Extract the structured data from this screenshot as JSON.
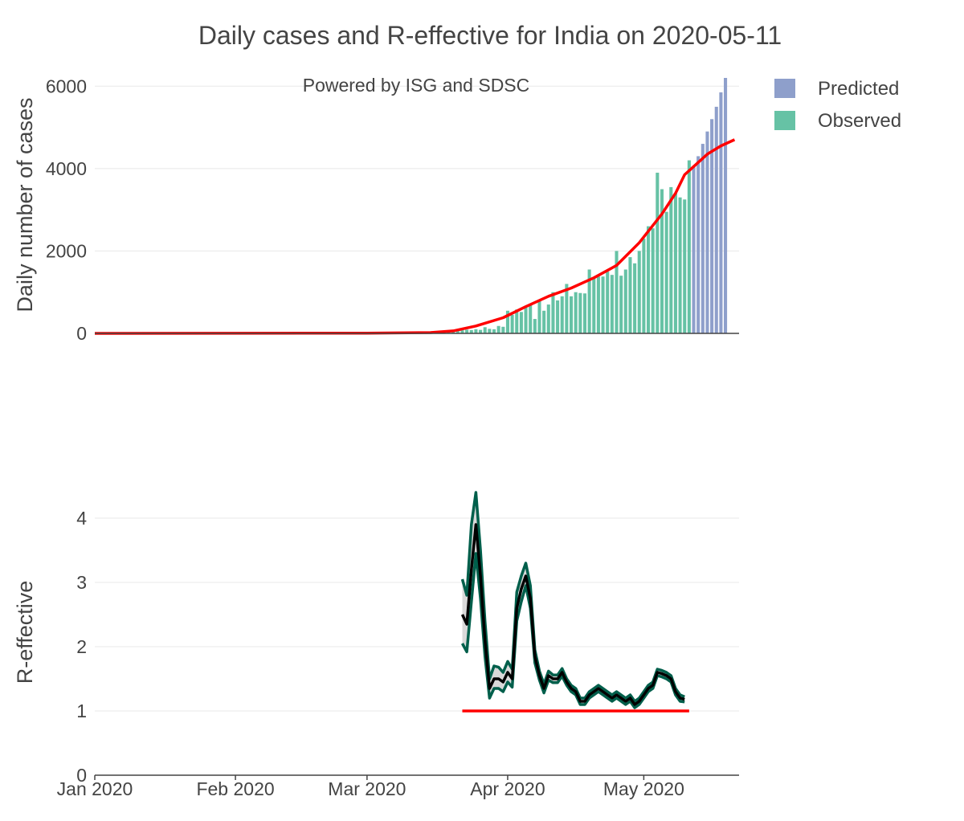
{
  "chart_data": [
    {
      "type": "bar",
      "title": "Daily cases and R-effective for India on 2020-05-11",
      "annotation": "Powered by ISG and SDSC",
      "ylabel": "Daily number of cases",
      "ylim": [
        0,
        6200
      ],
      "yticks": [
        0,
        2000,
        4000,
        6000
      ],
      "ytick_labels": [
        "0",
        "2000",
        "4000",
        "6000"
      ],
      "x_range": [
        "2020-01-01",
        "2020-05-22"
      ],
      "legend": [
        {
          "name": "Predicted",
          "color": "#8e9fcb"
        },
        {
          "name": "Observed",
          "color": "#66c2a5"
        }
      ],
      "observed_start": "2020-03-15",
      "observed_values": [
        3,
        8,
        12,
        18,
        28,
        40,
        60,
        75,
        90,
        80,
        100,
        85,
        150,
        110,
        100,
        180,
        160,
        550,
        450,
        580,
        520,
        650,
        700,
        350,
        780,
        550,
        700,
        1000,
        800,
        900,
        1200,
        900,
        1000,
        980,
        970,
        1550,
        1350,
        1380,
        1380,
        1500,
        1420,
        2000,
        1400,
        1550,
        1850,
        1700,
        2000,
        2300,
        2600,
        2550,
        3900,
        3500,
        2950,
        3550,
        3400,
        3300,
        3250,
        4200
      ],
      "predicted_start": "2020-05-12",
      "predicted_values": [
        4050,
        4300,
        4600,
        4900,
        5200,
        5500,
        5850,
        6200
      ],
      "trend_line": {
        "name": "smoothed average",
        "color": "#ff0000",
        "dates": [
          "2020-01-01",
          "2020-03-01",
          "2020-03-15",
          "2020-03-20",
          "2020-03-25",
          "2020-03-31",
          "2020-04-05",
          "2020-04-10",
          "2020-04-15",
          "2020-04-20",
          "2020-04-25",
          "2020-04-30",
          "2020-05-05",
          "2020-05-08",
          "2020-05-10",
          "2020-05-12",
          "2020-05-15",
          "2020-05-18",
          "2020-05-21"
        ],
        "values": [
          0,
          5,
          20,
          60,
          180,
          380,
          650,
          900,
          1100,
          1350,
          1650,
          2200,
          2900,
          3400,
          3850,
          4050,
          4350,
          4550,
          4700
        ]
      }
    },
    {
      "type": "line",
      "ylabel": "R-effective",
      "ylim": [
        0,
        4.4
      ],
      "yticks": [
        0,
        1,
        2,
        3,
        4
      ],
      "ytick_labels": [
        "0",
        "1",
        "2",
        "3",
        "4"
      ],
      "x_ticks": [
        "2020-01-01",
        "2020-02-01",
        "2020-03-01",
        "2020-04-01",
        "2020-05-01"
      ],
      "x_tick_labels": [
        "Jan 2020",
        "Feb 2020",
        "Mar 2020",
        "Apr 2020",
        "May 2020"
      ],
      "start_date": "2020-03-22",
      "r_values": [
        2.5,
        2.35,
        3.2,
        3.9,
        3.1,
        2.1,
        1.35,
        1.5,
        1.5,
        1.45,
        1.6,
        1.5,
        2.6,
        2.9,
        3.1,
        2.75,
        1.85,
        1.55,
        1.35,
        1.55,
        1.5,
        1.5,
        1.6,
        1.45,
        1.35,
        1.3,
        1.15,
        1.15,
        1.25,
        1.3,
        1.35,
        1.3,
        1.25,
        1.2,
        1.25,
        1.2,
        1.15,
        1.2,
        1.1,
        1.15,
        1.25,
        1.35,
        1.4,
        1.6,
        1.58,
        1.55,
        1.5,
        1.3,
        1.2,
        1.18
      ],
      "ci_upper": [
        3.05,
        2.8,
        3.9,
        4.4,
        3.5,
        2.4,
        1.5,
        1.7,
        1.68,
        1.6,
        1.77,
        1.65,
        2.85,
        3.1,
        3.3,
        2.95,
        1.95,
        1.62,
        1.42,
        1.62,
        1.56,
        1.56,
        1.66,
        1.5,
        1.4,
        1.35,
        1.2,
        1.2,
        1.3,
        1.35,
        1.4,
        1.35,
        1.3,
        1.25,
        1.3,
        1.25,
        1.2,
        1.25,
        1.15,
        1.2,
        1.3,
        1.4,
        1.45,
        1.65,
        1.63,
        1.6,
        1.55,
        1.35,
        1.25,
        1.22
      ],
      "ci_lower": [
        2.05,
        1.92,
        2.7,
        3.45,
        2.75,
        1.85,
        1.2,
        1.35,
        1.35,
        1.3,
        1.45,
        1.37,
        2.4,
        2.7,
        2.95,
        2.6,
        1.75,
        1.48,
        1.28,
        1.48,
        1.44,
        1.44,
        1.54,
        1.4,
        1.3,
        1.25,
        1.1,
        1.1,
        1.2,
        1.25,
        1.3,
        1.25,
        1.2,
        1.15,
        1.2,
        1.15,
        1.1,
        1.15,
        1.05,
        1.1,
        1.2,
        1.3,
        1.35,
        1.55,
        1.53,
        1.5,
        1.45,
        1.25,
        1.15,
        1.14
      ],
      "reference_line": {
        "value": 1,
        "from": "2020-03-22",
        "to": "2020-05-11",
        "color": "#ff0000"
      }
    }
  ]
}
